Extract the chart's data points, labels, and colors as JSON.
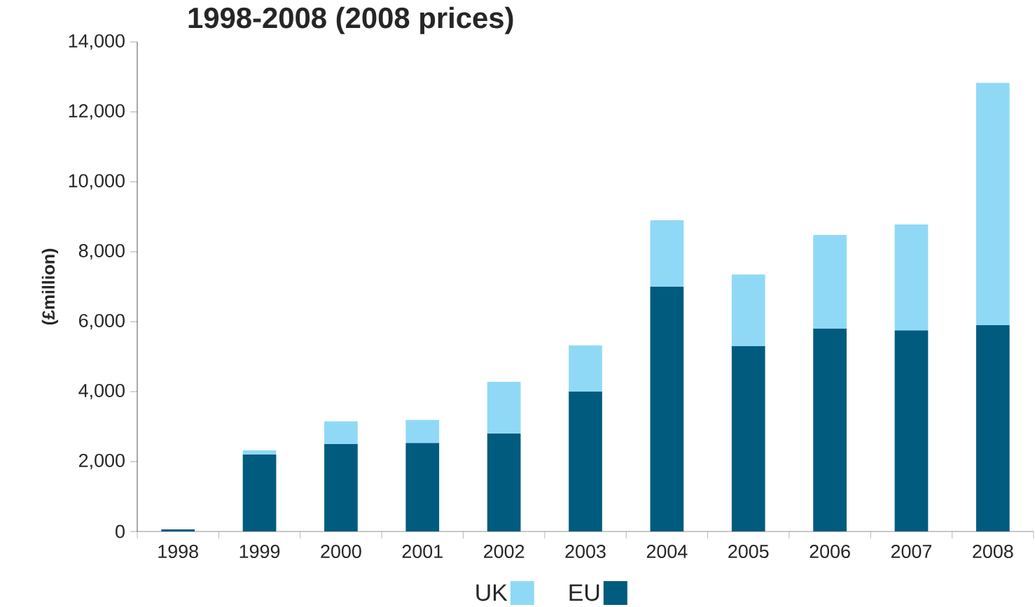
{
  "chart_data": {
    "type": "bar",
    "title": "1998-2008 (2008 prices)",
    "ylabel": "(£million)",
    "categories": [
      "1998",
      "1999",
      "2000",
      "2001",
      "2002",
      "2003",
      "2004",
      "2005",
      "2006",
      "2007",
      "2008"
    ],
    "stacked": true,
    "series": [
      {
        "name": "EU",
        "color": "#005b7f",
        "values": [
          60,
          2200,
          2500,
          2530,
          2800,
          4000,
          7000,
          5300,
          5800,
          5750,
          5900
        ]
      },
      {
        "name": "UK",
        "color": "#8fd9f7",
        "values": [
          0,
          120,
          650,
          660,
          1480,
          1320,
          1900,
          2050,
          2680,
          3030,
          6930
        ]
      }
    ],
    "ylim": [
      0,
      14000
    ],
    "yticks": [
      {
        "value": 0,
        "label": "0"
      },
      {
        "value": 2000,
        "label": "2,000"
      },
      {
        "value": 4000,
        "label": "4,000"
      },
      {
        "value": 6000,
        "label": "6,000"
      },
      {
        "value": 8000,
        "label": "8,000"
      },
      {
        "value": 10000,
        "label": "10,000"
      },
      {
        "value": 12000,
        "label": "12,000"
      },
      {
        "value": 14000,
        "label": "14,000"
      }
    ],
    "grid": false,
    "legend": "bottom"
  }
}
